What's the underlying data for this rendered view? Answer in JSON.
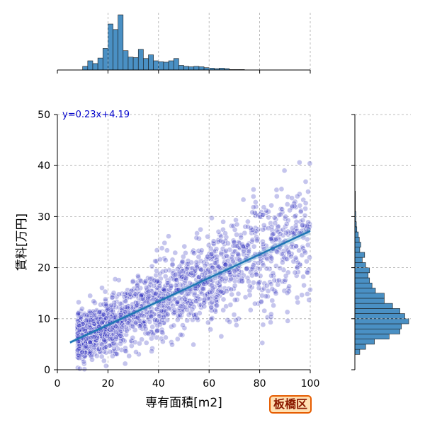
{
  "chart_data": {
    "type": "scatter",
    "title": "",
    "xlabel": "専有面積[m2]",
    "ylabel": "賃料[万円]",
    "xlim": [
      0,
      100
    ],
    "ylim": [
      0,
      50
    ],
    "xticks": [
      0,
      20,
      40,
      60,
      80,
      100
    ],
    "yticks": [
      0,
      10,
      20,
      30,
      40,
      50
    ],
    "grid": true,
    "regression": {
      "label": "y=0.23x+4.19",
      "slope": 0.23,
      "intercept": 4.19,
      "x_range": [
        5,
        100
      ]
    },
    "badge": "板橋区",
    "colors": {
      "points": "#3030c0",
      "line": "#1f77b4",
      "hist": "#4a90c4",
      "annotation": "#0000cc",
      "badge_border": "#e65c00"
    },
    "point_cloud": {
      "count": 2000,
      "x_range": [
        8,
        100
      ],
      "mode": 32,
      "residual_sd": 2.8
    },
    "top_histogram": {
      "bin_start": 10,
      "bin_width": 2,
      "counts": [
        8,
        20,
        14,
        26,
        47,
        100,
        88,
        120,
        42,
        28,
        27,
        45,
        25,
        33,
        20,
        18,
        17,
        20,
        25,
        10,
        8,
        7,
        8,
        7,
        5,
        4,
        3,
        4,
        3,
        1,
        1,
        1
      ]
    },
    "right_histogram": {
      "bin_start": 3,
      "bin_width": 1,
      "counts": [
        10,
        22,
        40,
        70,
        92,
        95,
        110,
        102,
        92,
        77,
        60,
        60,
        42,
        35,
        30,
        27,
        30,
        22,
        15,
        20,
        10,
        12,
        9,
        7,
        4,
        3,
        2,
        2,
        1,
        1,
        1,
        1
      ]
    }
  }
}
